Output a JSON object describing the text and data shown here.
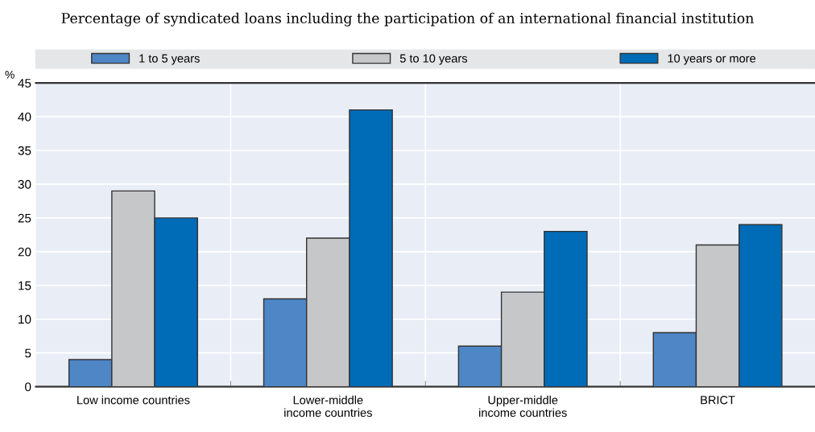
{
  "chart_data": {
    "type": "bar",
    "title": "Percentage of syndicated loans including the participation of an international financial institution",
    "ylabel": "%",
    "categories": [
      "Low income countries",
      "Lower-middle\nincome countries",
      "Upper-middle\nincome countries",
      "BRICT"
    ],
    "series": [
      {
        "name": "1 to 5 years",
        "color": "#4e86c6",
        "values": [
          4,
          13,
          6,
          8
        ]
      },
      {
        "name": "5 to 10 years",
        "color": "#c6c7c9",
        "values": [
          29,
          22,
          14,
          21
        ]
      },
      {
        "name": "10 years or more",
        "color": "#006bb6",
        "values": [
          25,
          41,
          23,
          24
        ]
      }
    ],
    "ylim": [
      0,
      45
    ],
    "yticks": [
      0,
      5,
      10,
      15,
      20,
      25,
      30,
      35,
      40,
      45
    ],
    "grid": true,
    "legend": "top"
  }
}
